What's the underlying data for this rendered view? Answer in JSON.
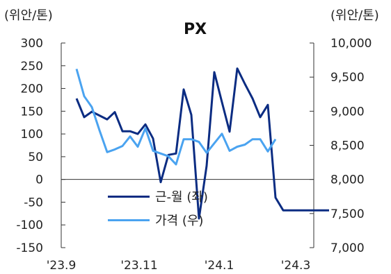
{
  "chart_data": {
    "type": "line",
    "title": "PX",
    "left_unit": "(위안/톤)",
    "right_unit": "(위안/톤)",
    "x_tick_labels": [
      "'23.9",
      "'23.11",
      "'24.1",
      "'24.3"
    ],
    "left_axis": {
      "ylim": [
        -150,
        300
      ],
      "ticks": [
        "300",
        "250",
        "200",
        "150",
        "100",
        "50",
        "0",
        "-50",
        "-100",
        "-150"
      ]
    },
    "right_axis": {
      "ylim": [
        7000,
        10000
      ],
      "ticks": [
        "10,000",
        "9,500",
        "9,000",
        "8,500",
        "8,000",
        "7,500",
        "7,000"
      ]
    },
    "legend_position": "bottom-left",
    "grid": false,
    "series": [
      {
        "name": "근-월 (좌)",
        "axis": "left",
        "color": "#0b2c82",
        "x": [
          0,
          1,
          2,
          4,
          5,
          6,
          7,
          8,
          9,
          10,
          11,
          12,
          13,
          14,
          15,
          16,
          17,
          18,
          19,
          20,
          21,
          22,
          23,
          24,
          25,
          26,
          27,
          28,
          29,
          30,
          31,
          32,
          33
        ],
        "values": [
          178,
          137,
          149,
          132,
          148,
          106,
          106,
          100,
          121,
          90,
          -6,
          54,
          57,
          198,
          142,
          -86,
          30,
          236,
          170,
          105,
          244,
          210,
          178,
          137,
          164,
          -40,
          -68,
          -68,
          -68,
          -68,
          -68,
          -68,
          -68
        ]
      },
      {
        "name": "가격 (우)",
        "axis": "right",
        "color": "#4aa3f0",
        "x": [
          0,
          1,
          2,
          3,
          4,
          5,
          6,
          7,
          8,
          9,
          10,
          11,
          12,
          13,
          14,
          15,
          16,
          17,
          18,
          19,
          20,
          21,
          22,
          23,
          24,
          25,
          26
        ],
        "values": [
          9620,
          9220,
          9060,
          8720,
          8400,
          8440,
          8490,
          8630,
          8480,
          8750,
          8420,
          8380,
          8340,
          8220,
          8590,
          8590,
          8550,
          8390,
          8530,
          8670,
          8420,
          8480,
          8510,
          8590,
          8590,
          8410,
          8590
        ]
      }
    ]
  }
}
